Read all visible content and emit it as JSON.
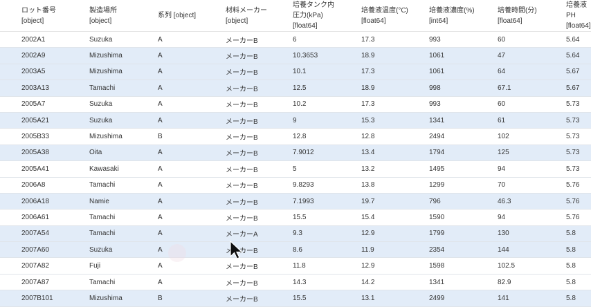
{
  "columns": [
    {
      "name": "ロット番号",
      "type": "[object]"
    },
    {
      "name": "製造場所",
      "type": "[object]"
    },
    {
      "name": "系列 [object]",
      "type": ""
    },
    {
      "name": "材料メーカー",
      "type": "[object]"
    },
    {
      "name": "培養タンク内\n圧力(kPa)",
      "type": "[float64]"
    },
    {
      "name": "培養液温度(°C)",
      "type": "[float64]"
    },
    {
      "name": "培養液濃度(%)",
      "type": "[int64]"
    },
    {
      "name": "培養時間(分)",
      "type": "[float64]"
    },
    {
      "name": "培養液PH",
      "type": "[float64]"
    }
  ],
  "rows": [
    {
      "selected": false,
      "cells": [
        "2002A1",
        "Suzuka",
        "A",
        "メーカーB",
        "6",
        "17.3",
        "993",
        "60",
        "5.64"
      ]
    },
    {
      "selected": true,
      "cells": [
        "2002A9",
        "Mizushima",
        "A",
        "メーカーB",
        "10.3653",
        "18.9",
        "1061",
        "47",
        "5.64"
      ]
    },
    {
      "selected": true,
      "cells": [
        "2003A5",
        "Mizushima",
        "A",
        "メーカーB",
        "10.1",
        "17.3",
        "1061",
        "64",
        "5.67"
      ]
    },
    {
      "selected": true,
      "cells": [
        "2003A13",
        "Tamachi",
        "A",
        "メーカーB",
        "12.5",
        "18.9",
        "998",
        "67.1",
        "5.67"
      ]
    },
    {
      "selected": false,
      "cells": [
        "2005A7",
        "Suzuka",
        "A",
        "メーカーB",
        "10.2",
        "17.3",
        "993",
        "60",
        "5.73"
      ]
    },
    {
      "selected": true,
      "cells": [
        "2005A21",
        "Suzuka",
        "A",
        "メーカーB",
        "9",
        "15.3",
        "1341",
        "61",
        "5.73"
      ]
    },
    {
      "selected": false,
      "cells": [
        "2005B33",
        "Mizushima",
        "B",
        "メーカーB",
        "12.8",
        "12.8",
        "2494",
        "102",
        "5.73"
      ]
    },
    {
      "selected": true,
      "cells": [
        "2005A38",
        "Oita",
        "A",
        "メーカーB",
        "7.9012",
        "13.4",
        "1794",
        "125",
        "5.73"
      ]
    },
    {
      "selected": false,
      "cells": [
        "2005A41",
        "Kawasaki",
        "A",
        "メーカーB",
        "5",
        "13.2",
        "1495",
        "94",
        "5.73"
      ]
    },
    {
      "selected": false,
      "cells": [
        "2006A8",
        "Tamachi",
        "A",
        "メーカーB",
        "9.8293",
        "13.8",
        "1299",
        "70",
        "5.76"
      ]
    },
    {
      "selected": true,
      "cells": [
        "2006A18",
        "Namie",
        "A",
        "メーカーB",
        "7.1993",
        "19.7",
        "796",
        "46.3",
        "5.76"
      ]
    },
    {
      "selected": false,
      "cells": [
        "2006A61",
        "Tamachi",
        "A",
        "メーカーB",
        "15.5",
        "15.4",
        "1590",
        "94",
        "5.76"
      ]
    },
    {
      "selected": true,
      "cells": [
        "2007A54",
        "Tamachi",
        "A",
        "メーカーA",
        "9.3",
        "12.9",
        "1799",
        "130",
        "5.8"
      ]
    },
    {
      "selected": true,
      "cells": [
        "2007A60",
        "Suzuka",
        "A",
        "メーカーB",
        "8.6",
        "11.9",
        "2354",
        "144",
        "5.8"
      ]
    },
    {
      "selected": false,
      "cells": [
        "2007A82",
        "Fuji",
        "A",
        "メーカーB",
        "11.8",
        "12.9",
        "1598",
        "102.5",
        "5.8"
      ]
    },
    {
      "selected": false,
      "cells": [
        "2007A87",
        "Tamachi",
        "A",
        "メーカーB",
        "14.3",
        "14.2",
        "1341",
        "82.9",
        "5.8"
      ]
    },
    {
      "selected": true,
      "cells": [
        "2007B101",
        "Mizushima",
        "B",
        "メーカーB",
        "15.5",
        "13.1",
        "2499",
        "141",
        "5.8"
      ]
    }
  ],
  "colors": {
    "selected_row": "#e2ecf8",
    "border": "#dfe4ea"
  }
}
